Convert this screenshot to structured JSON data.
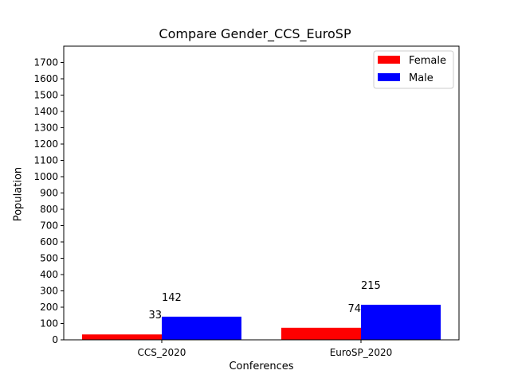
{
  "chart_data": {
    "type": "bar",
    "title": "Compare Gender_CCS_EuroSP",
    "xlabel": "Conferences",
    "ylabel": "Population",
    "categories": [
      "CCS_2020",
      "EuroSP_2020"
    ],
    "series": [
      {
        "name": "Female",
        "color": "#ff0000",
        "values": [
          33,
          74
        ]
      },
      {
        "name": "Male",
        "color": "#0000ff",
        "values": [
          142,
          215
        ]
      }
    ],
    "ylim": [
      0,
      1800
    ],
    "yticks": [
      0,
      100,
      200,
      300,
      400,
      500,
      600,
      700,
      800,
      900,
      1000,
      1100,
      1200,
      1300,
      1400,
      1500,
      1600,
      1700
    ],
    "data_labels": [
      {
        "category": "CCS_2020",
        "series": "Female",
        "text": "33"
      },
      {
        "category": "CCS_2020",
        "series": "Male",
        "text": "142"
      },
      {
        "category": "EuroSP_2020",
        "series": "Female",
        "text": "74"
      },
      {
        "category": "EuroSP_2020",
        "series": "Male",
        "text": "215"
      }
    ],
    "legend": "top-right",
    "grid": false
  }
}
